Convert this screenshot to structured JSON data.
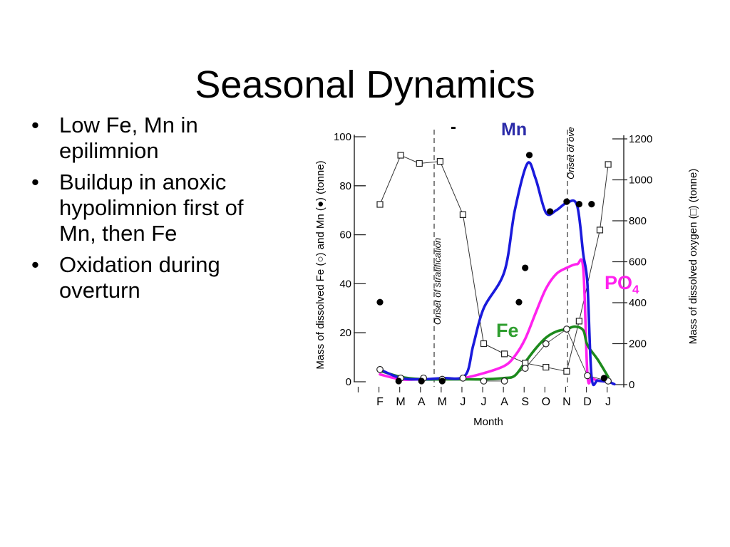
{
  "slide": {
    "title": "Seasonal Dynamics",
    "bullets": [
      "Low Fe, Mn in epilimnion",
      "Buildup in anoxic hypolimnion first of Mn, then Fe",
      "Oxidation during overturn"
    ]
  },
  "chart_data": {
    "type": "line",
    "xlabel": "Month",
    "categories": [
      "F",
      "M",
      "A",
      "M",
      "J",
      "J",
      "A",
      "S",
      "O",
      "N",
      "D",
      "J"
    ],
    "ylabel_left": "Mass of dissolved Fe (○) and Mn (●) (tonne)",
    "ylabel_right": "Mass of dissolved oxygen (□) (tonne)",
    "ylim_left": [
      0,
      100
    ],
    "ylim_right": [
      0,
      1200
    ],
    "yticks_left": [
      "0",
      "20",
      "40",
      "60",
      "80",
      "100"
    ],
    "yticks_right": [
      "0",
      "200",
      "400",
      "600",
      "800",
      "1000",
      "1200"
    ],
    "annotations": {
      "stratification": "Onset of stratification",
      "overturn": "Onset of ove",
      "dash_mark": "-",
      "mn_label": "Mn",
      "fe_label": "Fe",
      "po4_label": "PO",
      "po4_sub": "4"
    },
    "colors": {
      "mn": "#1a1adc",
      "fe": "#1c8a1c",
      "po4": "#ff22ee",
      "mn_label": "#2b2ba8",
      "fe_label": "#2e9e2e",
      "po4_label": "#ff22ee",
      "points": "#000000"
    },
    "series": [
      {
        "key": "mn_points",
        "axis": "left",
        "marker": "filled-circle",
        "x": [
          0.0,
          0.9,
          2.0,
          3.0,
          7.0,
          6.7,
          7.2,
          8.2,
          9.0,
          9.6,
          10.8,
          10.2
        ],
        "values": [
          32.5,
          0.3,
          0.3,
          0.3,
          46.5,
          32.5,
          92.5,
          69.5,
          73.5,
          72.5,
          1.5,
          72.5
        ]
      },
      {
        "key": "fe_points",
        "axis": "left",
        "marker": "open-circle",
        "x": [
          0.0,
          1.0,
          2.1,
          3.0,
          4.0,
          5.0,
          6.0,
          7.0,
          8.0,
          9.0,
          10.0,
          11.0
        ],
        "values": [
          5.0,
          1.5,
          1.5,
          1.0,
          1.5,
          0.3,
          0.3,
          5.5,
          15.5,
          21.5,
          2.5,
          0.3
        ]
      },
      {
        "key": "oxygen_points",
        "axis": "right",
        "marker": "open-square",
        "x": [
          0.0,
          1.0,
          1.9,
          2.9,
          4.0,
          5.0,
          6.0,
          7.0,
          8.0,
          9.0,
          9.6,
          10.6,
          11.0
        ],
        "values": [
          880,
          1120,
          1080,
          1090,
          830,
          200,
          150,
          105,
          85,
          65,
          310,
          755,
          1075
        ]
      },
      {
        "key": "mn_curve",
        "name": "Mn",
        "axis": "left",
        "style": "curve",
        "x": [
          0.0,
          1.0,
          2.0,
          3.0,
          4.1,
          4.5,
          5.0,
          6.0,
          6.5,
          7.1,
          7.5,
          8.0,
          8.5,
          9.0,
          9.5,
          9.8,
          10.0,
          10.2,
          10.5,
          11.0,
          11.3
        ],
        "values": [
          5.0,
          1.5,
          1.0,
          1.5,
          2.5,
          15.0,
          30.0,
          45.0,
          70.0,
          89.0,
          83.0,
          69.0,
          70.0,
          73.0,
          72.0,
          52.0,
          40.0,
          2.0,
          0.5,
          0.0,
          -1.0
        ]
      },
      {
        "key": "fe_curve",
        "name": "Fe",
        "axis": "left",
        "style": "curve",
        "x": [
          0.0,
          1.0,
          2.0,
          3.0,
          4.0,
          5.0,
          6.0,
          6.5,
          7.0,
          7.5,
          8.0,
          8.5,
          9.0,
          9.4,
          9.8,
          10.0,
          10.5,
          11.0
        ],
        "values": [
          4.5,
          2.0,
          1.0,
          1.0,
          1.0,
          1.0,
          1.5,
          2.5,
          8.0,
          13.5,
          18.0,
          20.5,
          21.5,
          22.5,
          21.0,
          15.0,
          9.0,
          2.0
        ]
      },
      {
        "key": "po4_curve",
        "name": "PO4",
        "axis": "left",
        "style": "curve",
        "x": [
          0.0,
          1.0,
          2.0,
          3.0,
          4.0,
          5.0,
          6.0,
          6.5,
          7.0,
          7.5,
          8.0,
          8.5,
          9.0,
          9.5,
          9.8,
          10.0,
          10.2,
          10.5,
          11.0
        ],
        "values": [
          3.0,
          1.0,
          1.0,
          1.0,
          1.5,
          3.5,
          6.5,
          10.5,
          17.5,
          28.0,
          38.0,
          44.0,
          46.5,
          48.0,
          46.0,
          3.0,
          1.5,
          0.5,
          0.0
        ]
      }
    ]
  }
}
